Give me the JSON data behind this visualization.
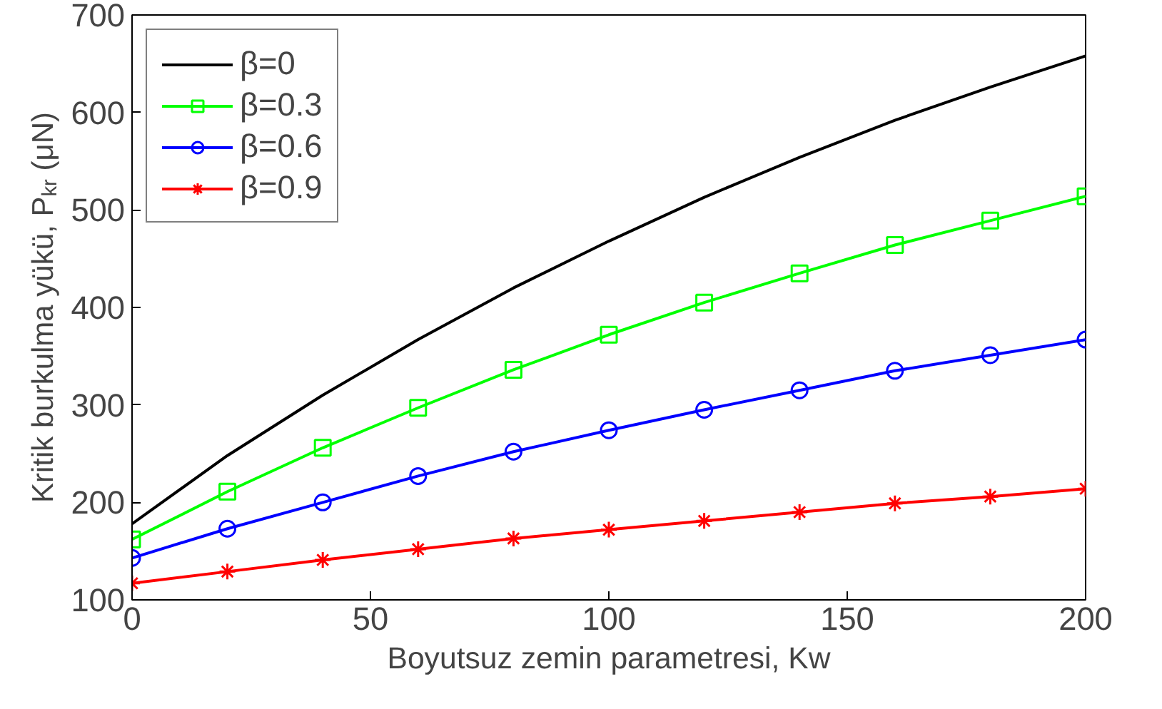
{
  "chart_data": {
    "type": "line",
    "xlabel": "Boyutsuz zemin parametresi, Kw",
    "ylabel": "Kritik burkulma yükü, P$_{kr}$ (μN)",
    "x": [
      0,
      20,
      40,
      60,
      80,
      100,
      120,
      140,
      160,
      180,
      200
    ],
    "xlim": [
      0,
      200
    ],
    "xticks": [
      0,
      50,
      100,
      150,
      200
    ],
    "ylim": [
      100,
      700
    ],
    "yticks": [
      100,
      200,
      300,
      400,
      500,
      600,
      700
    ],
    "grid": false,
    "legend": "top left",
    "line_style": "solid",
    "series": [
      {
        "name": "β=0",
        "color": "#000000",
        "marker": "none",
        "values": [
          178,
          248,
          310,
          367,
          420,
          468,
          513,
          554,
          592,
          626,
          658
        ]
      },
      {
        "name": "β=0.3",
        "color": "#00ff00",
        "marker": "square",
        "values": [
          162,
          211,
          256,
          297,
          336,
          372,
          405,
          435,
          464,
          489,
          514
        ]
      },
      {
        "name": "β=0.6",
        "color": "#0000ff",
        "marker": "circle",
        "values": [
          143,
          173,
          200,
          227,
          252,
          274,
          295,
          315,
          335,
          351,
          367
        ]
      },
      {
        "name": "β=0.9",
        "color": "#ff0000",
        "marker": "cross",
        "values": [
          117,
          129,
          141,
          152,
          163,
          172,
          181,
          190,
          199,
          206,
          214
        ]
      }
    ]
  }
}
